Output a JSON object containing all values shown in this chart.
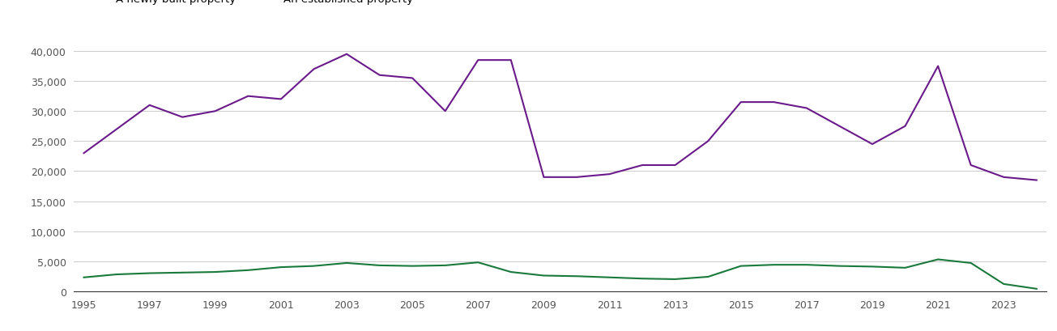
{
  "years": [
    1995,
    1996,
    1997,
    1998,
    1999,
    2000,
    2001,
    2002,
    2003,
    2004,
    2005,
    2006,
    2007,
    2008,
    2009,
    2010,
    2011,
    2012,
    2013,
    2014,
    2015,
    2016,
    2017,
    2018,
    2019,
    2020,
    2021,
    2022,
    2023,
    2024
  ],
  "new_homes": [
    2300,
    2800,
    3000,
    3100,
    3200,
    3500,
    4000,
    4200,
    4700,
    4300,
    4200,
    4300,
    4800,
    3200,
    2600,
    2500,
    2300,
    2100,
    2000,
    2400,
    4200,
    4400,
    4400,
    4200,
    4100,
    3900,
    5300,
    4700,
    1200,
    400
  ],
  "established_homes": [
    23000,
    27000,
    31000,
    29000,
    30000,
    32500,
    32000,
    37000,
    39500,
    36000,
    35500,
    30000,
    38500,
    38500,
    19000,
    19000,
    19500,
    21000,
    21000,
    25000,
    31500,
    31500,
    30500,
    27500,
    24500,
    27500,
    37500,
    21000,
    19000,
    18500
  ],
  "new_color": "#1a7a3c",
  "established_color": "#6a1a8a",
  "ylim": [
    0,
    42000
  ],
  "yticks": [
    0,
    5000,
    10000,
    15000,
    20000,
    25000,
    30000,
    35000,
    40000
  ],
  "background_color": "#ffffff",
  "grid_color": "#cccccc",
  "linewidth": 1.5
}
